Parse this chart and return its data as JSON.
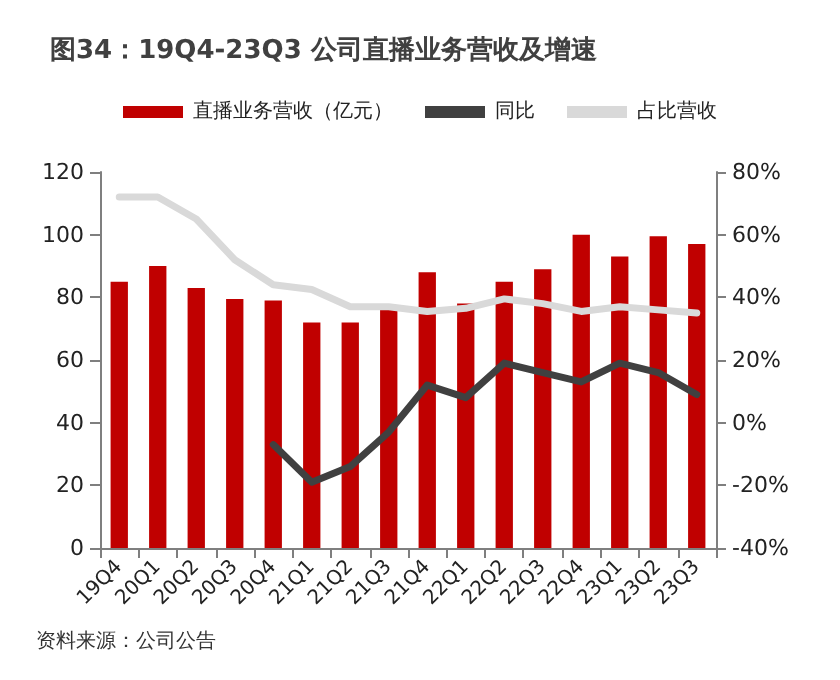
{
  "chart_data": {
    "type": "bar",
    "title": "图34：19Q4-23Q3 公司直播业务营收及增速",
    "categories": [
      "19Q4",
      "20Q1",
      "20Q2",
      "20Q3",
      "20Q4",
      "21Q1",
      "21Q2",
      "21Q3",
      "21Q4",
      "22Q1",
      "22Q2",
      "22Q3",
      "22Q4",
      "23Q1",
      "23Q2",
      "23Q3"
    ],
    "series": [
      {
        "name": "直播业务营收（亿元）",
        "color": "#c00000",
        "values": [
          85,
          90,
          83,
          79.5,
          79,
          72,
          72,
          76,
          88,
          78,
          85,
          89,
          100,
          93,
          99.5,
          97
        ]
      },
      {
        "name": "同比",
        "color": "#404040",
        "type": "line",
        "axis": "y2",
        "values": [
          null,
          null,
          null,
          null,
          -7,
          -19,
          -14,
          -3,
          12,
          8,
          19,
          16,
          13,
          19,
          16,
          9
        ]
      },
      {
        "name": "占比营收",
        "color": "#d9d9d9",
        "type": "line",
        "axis": "y2",
        "values": [
          72,
          72,
          65,
          52,
          44,
          42.5,
          37,
          37,
          35.5,
          36.5,
          39.5,
          38,
          35.5,
          37,
          36,
          35
        ]
      }
    ],
    "ylim": [
      0,
      120
    ],
    "yticks": [
      0,
      20,
      40,
      60,
      80,
      100,
      120
    ],
    "y2lim": [
      -40,
      80
    ],
    "y2ticks": [
      {
        "value": -40,
        "label": "-40%"
      },
      {
        "value": -20,
        "label": "-20%"
      },
      {
        "value": 0,
        "label": "0%"
      },
      {
        "value": 20,
        "label": "20%"
      },
      {
        "value": 40,
        "label": "40%"
      },
      {
        "value": 60,
        "label": "60%"
      },
      {
        "value": 80,
        "label": "80%"
      }
    ],
    "grid": false,
    "legend": "top",
    "marker": "none",
    "line_style": "solid",
    "annotations": [
      "资料来源：公司公告"
    ]
  }
}
